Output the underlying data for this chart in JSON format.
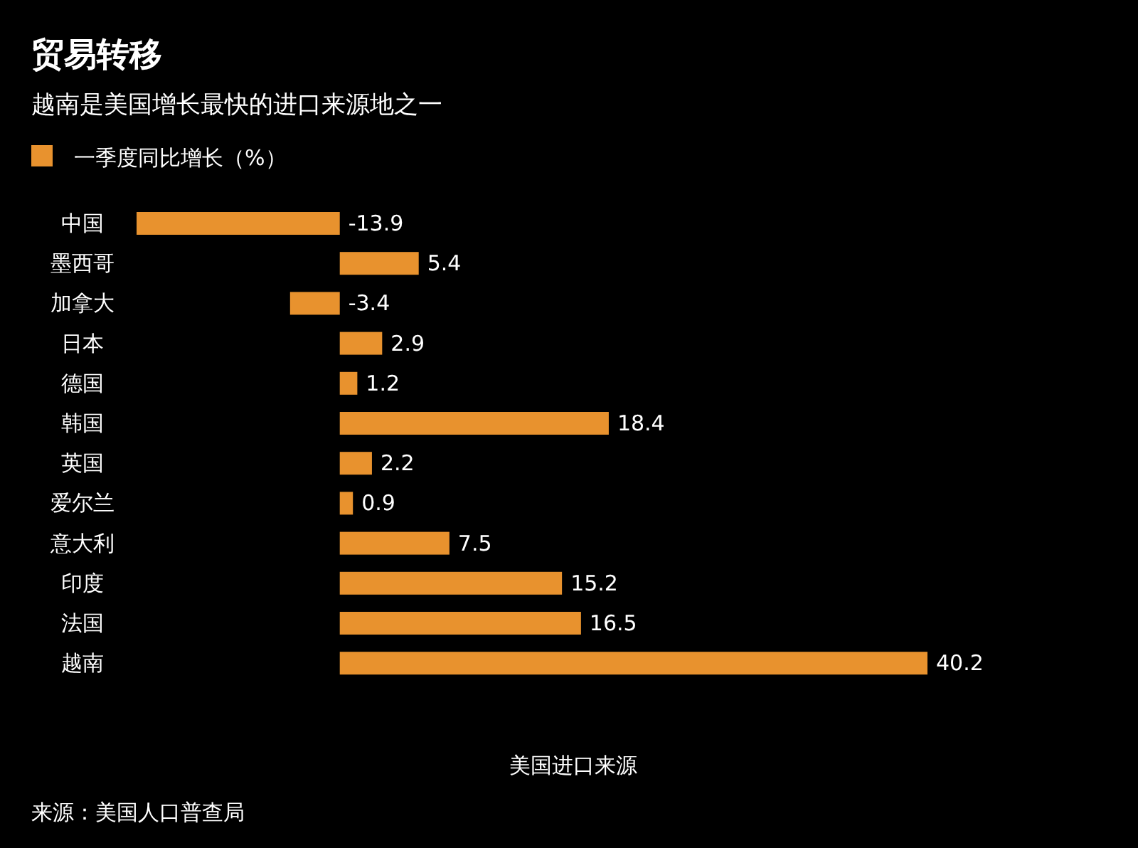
{
  "chart_data": {
    "type": "bar",
    "orientation": "horizontal",
    "title": "贸易转移",
    "subtitle": "越南是美国增长最快的进口来源地之一",
    "xlabel": "美国进口来源",
    "categories": [
      "中国",
      "墨西哥",
      "加拿大",
      "日本",
      "德国",
      "韩国",
      "英国",
      "爱尔兰",
      "意大利",
      "印度",
      "法国",
      "越南"
    ],
    "series": [
      {
        "name": "一季度同比增长（%）",
        "color": "#e8922e",
        "values": [
          -13.9,
          5.4,
          -3.4,
          2.9,
          1.2,
          18.4,
          2.2,
          0.9,
          7.5,
          15.2,
          16.5,
          40.2
        ]
      }
    ],
    "data_labels": true,
    "legend": "top left",
    "grid": false,
    "annotations": [
      "来源：美国人口普查局"
    ]
  }
}
